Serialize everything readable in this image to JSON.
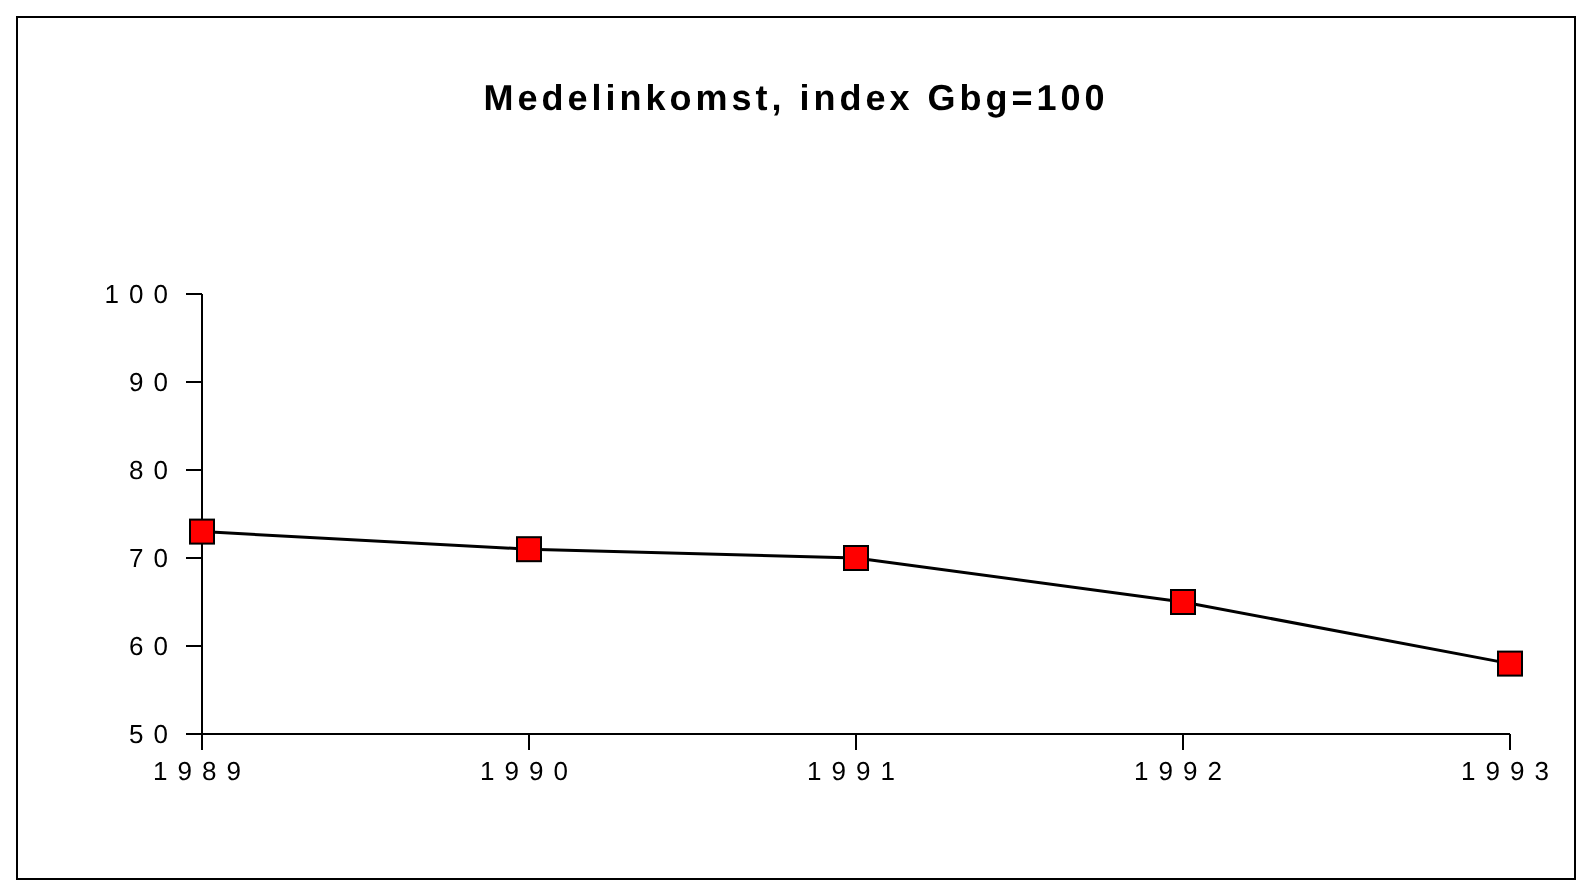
{
  "chart_data": {
    "type": "line",
    "title": "Medelinkomst, index Gbg=100",
    "x": [
      1989,
      1990,
      1991,
      1992,
      1993
    ],
    "series": [
      {
        "color": "#ff0000",
        "values": [
          73,
          71,
          70,
          65,
          58
        ]
      }
    ],
    "xlim": [
      1989,
      1993
    ],
    "xticks": [
      1989,
      1990,
      1991,
      1992,
      1993
    ],
    "ylim": [
      50,
      100
    ],
    "yticks": [
      50,
      60,
      70,
      80,
      90,
      100
    ],
    "grid": false,
    "legend": false,
    "marker": "square",
    "line_style": "solid"
  }
}
